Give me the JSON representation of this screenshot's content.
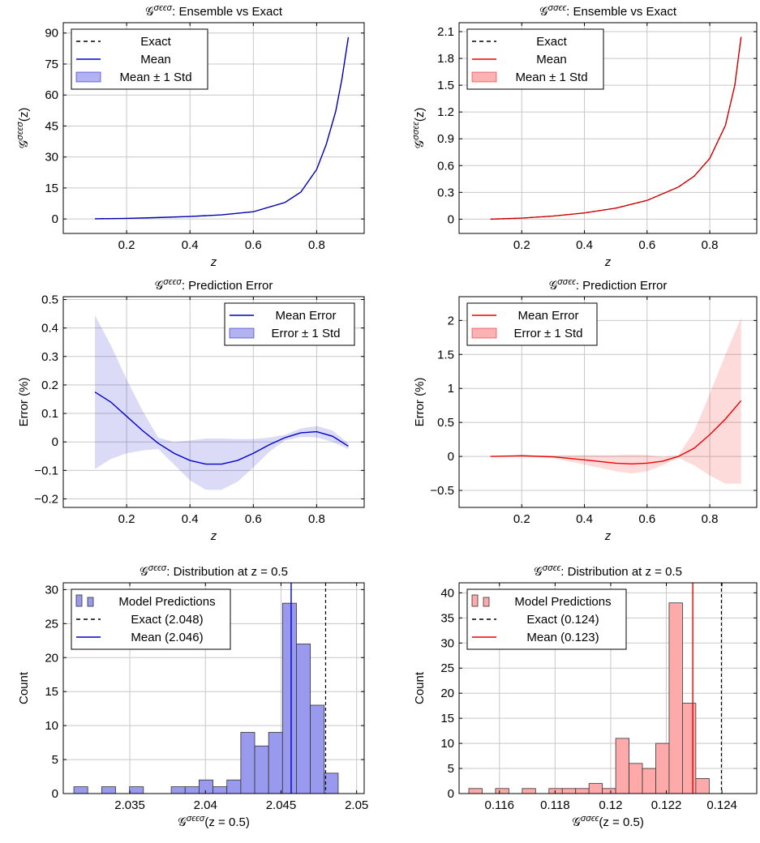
{
  "chart_data": [
    {
      "id": "p1",
      "type": "line",
      "title": "𝒢^{σϵϵσ}: Ensemble vs Exact",
      "xlabel": "z",
      "ylabel": "𝒢^{σϵϵσ}(z)",
      "xlim": [
        0,
        0.95
      ],
      "ylim": [
        -7,
        95
      ],
      "xticks": [
        0.2,
        0.4,
        0.6,
        0.8
      ],
      "xtick_labels": [
        "0.2",
        "0.4",
        "0.6",
        "0.8"
      ],
      "yticks": [
        0,
        15,
        30,
        45,
        60,
        75,
        90
      ],
      "ytick_labels": [
        "0",
        "15",
        "30",
        "45",
        "60",
        "75",
        "90"
      ],
      "grid": true,
      "legend_position": "top-left",
      "color": "#0000cc",
      "legend": [
        "Exact",
        "Mean",
        "Mean ± 1 Std"
      ],
      "x": [
        0.1,
        0.2,
        0.3,
        0.4,
        0.5,
        0.6,
        0.7,
        0.75,
        0.8,
        0.83,
        0.86,
        0.88,
        0.9
      ],
      "exact": [
        0.1,
        0.3,
        0.7,
        1.2,
        2.0,
        3.5,
        8.0,
        13.0,
        24.0,
        36.0,
        52.0,
        68.0,
        88.0
      ],
      "mean": [
        0.1,
        0.3,
        0.7,
        1.2,
        2.0,
        3.5,
        8.0,
        13.0,
        24.0,
        36.0,
        52.0,
        68.0,
        88.0
      ],
      "std": [
        0,
        0,
        0,
        0,
        0,
        0,
        0,
        0,
        0,
        0,
        0,
        0,
        0
      ]
    },
    {
      "id": "p2",
      "type": "line",
      "title": "𝒢^{σσϵϵ}: Ensemble vs Exact",
      "xlabel": "z",
      "ylabel": "𝒢^{σσϵϵ}(z)",
      "xlim": [
        0,
        0.95
      ],
      "ylim": [
        -0.16,
        2.2
      ],
      "xticks": [
        0.2,
        0.4,
        0.6,
        0.8
      ],
      "xtick_labels": [
        "0.2",
        "0.4",
        "0.6",
        "0.8"
      ],
      "yticks": [
        0,
        0.3,
        0.6,
        0.9,
        1.2,
        1.5,
        1.8,
        2.1
      ],
      "ytick_labels": [
        "0",
        "0.3",
        "0.6",
        "0.9",
        "1.2",
        "1.5",
        "1.8",
        "2.1"
      ],
      "grid": true,
      "legend_position": "top-left",
      "color": "#ee0000",
      "legend": [
        "Exact",
        "Mean",
        "Mean ± 1 Std"
      ],
      "x": [
        0.1,
        0.2,
        0.3,
        0.4,
        0.5,
        0.6,
        0.7,
        0.75,
        0.8,
        0.85,
        0.88,
        0.9
      ],
      "exact": [
        0.0,
        0.012,
        0.035,
        0.07,
        0.124,
        0.21,
        0.36,
        0.48,
        0.68,
        1.05,
        1.5,
        2.04
      ],
      "mean": [
        0.0,
        0.012,
        0.035,
        0.07,
        0.123,
        0.21,
        0.36,
        0.48,
        0.68,
        1.05,
        1.5,
        2.04
      ],
      "std": [
        0,
        0,
        0,
        0,
        0,
        0,
        0,
        0,
        0,
        0.005,
        0.01,
        0.02
      ]
    },
    {
      "id": "p3",
      "type": "line",
      "title": "𝒢^{σϵϵσ}: Prediction Error",
      "xlabel": "z",
      "ylabel": "Error (%)",
      "xlim": [
        0,
        0.95
      ],
      "ylim": [
        -0.23,
        0.51
      ],
      "xticks": [
        0.2,
        0.4,
        0.6,
        0.8
      ],
      "xtick_labels": [
        "0.2",
        "0.4",
        "0.6",
        "0.8"
      ],
      "yticks": [
        -0.2,
        -0.1,
        0,
        0.1,
        0.2,
        0.3,
        0.4,
        0.5
      ],
      "ytick_labels": [
        "−0.2",
        "−0.1",
        "0",
        "0.1",
        "0.2",
        "0.3",
        "0.4",
        "0.5"
      ],
      "grid": true,
      "legend_position": "top-right",
      "color": "#0000cc",
      "legend": [
        "Mean Error",
        "Error ± 1 Std"
      ],
      "x": [
        0.1,
        0.15,
        0.2,
        0.25,
        0.3,
        0.35,
        0.4,
        0.45,
        0.5,
        0.55,
        0.6,
        0.65,
        0.7,
        0.75,
        0.8,
        0.85,
        0.9
      ],
      "mean": [
        0.175,
        0.14,
        0.09,
        0.04,
        -0.005,
        -0.04,
        -0.065,
        -0.078,
        -0.078,
        -0.065,
        -0.04,
        -0.01,
        0.015,
        0.032,
        0.036,
        0.02,
        -0.015
      ],
      "std": [
        0.27,
        0.2,
        0.13,
        0.07,
        0.02,
        0.04,
        0.07,
        0.09,
        0.09,
        0.075,
        0.05,
        0.025,
        0.01,
        0.015,
        0.02,
        0.02,
        0.01
      ]
    },
    {
      "id": "p4",
      "type": "line",
      "title": "𝒢^{σσϵϵ}: Prediction Error",
      "xlabel": "z",
      "ylabel": "Error (%)",
      "xlim": [
        0,
        0.95
      ],
      "ylim": [
        -0.75,
        2.35
      ],
      "xticks": [
        0.2,
        0.4,
        0.6,
        0.8
      ],
      "xtick_labels": [
        "0.2",
        "0.4",
        "0.6",
        "0.8"
      ],
      "yticks": [
        -0.5,
        0,
        0.5,
        1,
        1.5,
        2
      ],
      "ytick_labels": [
        "−0.5",
        "0",
        "0.5",
        "1",
        "1.5",
        "2"
      ],
      "grid": true,
      "legend_position": "top-left",
      "color": "#ee0000",
      "legend": [
        "Mean Error",
        "Error ± 1 Std"
      ],
      "x": [
        0.1,
        0.2,
        0.3,
        0.4,
        0.5,
        0.55,
        0.6,
        0.65,
        0.7,
        0.75,
        0.8,
        0.85,
        0.9
      ],
      "mean": [
        0.0,
        0.01,
        -0.005,
        -0.05,
        -0.1,
        -0.11,
        -0.1,
        -0.07,
        0.0,
        0.12,
        0.32,
        0.55,
        0.82
      ],
      "std": [
        0.0,
        0.005,
        0.02,
        0.07,
        0.12,
        0.14,
        0.12,
        0.06,
        0.02,
        0.25,
        0.6,
        0.95,
        1.22
      ]
    },
    {
      "id": "p5",
      "type": "bar",
      "title": "𝒢^{σϵϵσ}: Distribution at z = 0.5",
      "xlabel": "𝒢^{σϵϵσ}(z = 0.5)",
      "ylabel": "Count",
      "xlim": [
        2.0306,
        2.0505
      ],
      "ylim": [
        0,
        31
      ],
      "xticks": [
        2.035,
        2.04,
        2.045,
        2.05
      ],
      "xtick_labels": [
        "2.035",
        "2.04",
        "2.045",
        "2.05"
      ],
      "yticks": [
        0,
        5,
        10,
        15,
        20,
        25,
        30
      ],
      "ytick_labels": [
        "0",
        "5",
        "10",
        "15",
        "20",
        "25",
        "30"
      ],
      "grid": true,
      "legend_position": "top-left",
      "color": "#0000cc",
      "bar_fill": "#9999ee",
      "legend": [
        "Model Predictions",
        "Exact (2.048)",
        "Mean (2.046)"
      ],
      "bin_start": 2.0313,
      "bin_width": 0.00092,
      "counts": [
        1,
        0,
        1,
        0,
        1,
        0,
        0,
        1,
        1,
        2,
        1,
        2,
        9,
        7,
        9,
        28,
        22,
        13,
        3
      ],
      "exact": 2.04795,
      "mean": 2.04567
    },
    {
      "id": "p6",
      "type": "bar",
      "title": "𝒢^{σσϵϵ}: Distribution at z = 0.5",
      "xlabel": "𝒢^{σσϵϵ}(z = 0.5)",
      "ylabel": "Count",
      "xlim": [
        0.11455,
        0.12525
      ],
      "ylim": [
        0,
        42
      ],
      "xticks": [
        0.116,
        0.118,
        0.12,
        0.122,
        0.124
      ],
      "xtick_labels": [
        "0.116",
        "0.118",
        "0.12",
        "0.122",
        "0.124"
      ],
      "yticks": [
        0,
        5,
        10,
        15,
        20,
        25,
        30,
        35,
        40
      ],
      "ytick_labels": [
        "0",
        "5",
        "10",
        "15",
        "20",
        "25",
        "30",
        "35",
        "40"
      ],
      "grid": true,
      "legend_position": "top-left",
      "color": "#ee0000",
      "bar_fill": "#ffaaaa",
      "legend": [
        "Model Predictions",
        "Exact (0.124)",
        "Mean (0.123)"
      ],
      "bin_start": 0.1149,
      "bin_width": 0.00048,
      "counts": [
        1,
        0,
        1,
        0,
        1,
        0,
        1,
        1,
        1,
        2,
        1,
        11,
        6,
        5,
        10,
        38,
        18,
        3
      ],
      "exact": 0.12398,
      "mean": 0.12295
    }
  ]
}
